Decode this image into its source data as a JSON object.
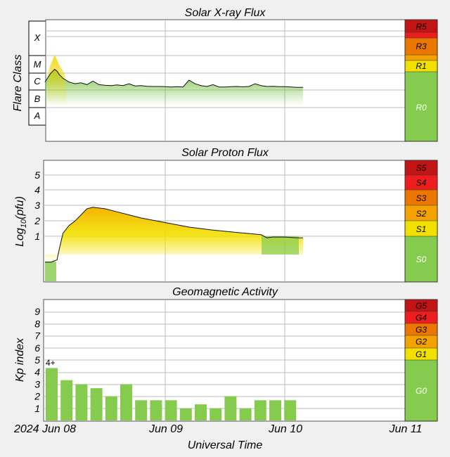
{
  "chart_data": [
    {
      "type": "area",
      "title": "Solar X-ray Flux",
      "ylabel": "Flare Class",
      "class_labels": [
        "X",
        "M",
        "C",
        "B",
        "A"
      ],
      "scale_bands": [
        "R5",
        "R3",
        "R1",
        "R0"
      ],
      "series": [
        {
          "x_days": [
            0,
            0.02,
            0.05,
            0.08,
            0.1,
            0.12,
            0.15,
            0.2,
            0.25,
            0.3,
            0.35,
            0.4,
            0.45,
            0.5,
            0.55,
            0.6,
            0.65,
            0.7,
            0.75,
            0.8,
            0.85,
            0.9,
            0.95,
            1.0,
            1.05,
            1.1,
            1.15,
            1.2,
            1.25,
            1.3,
            1.35,
            1.4,
            1.45,
            1.5,
            1.55,
            1.6,
            1.65,
            1.7,
            1.75,
            1.8,
            1.85,
            1.9,
            1.95,
            2.0,
            2.05,
            2.1,
            2.15
          ],
          "log_flux": [
            -5.6,
            -5.4,
            -5.1,
            -4.9,
            -5.0,
            -5.2,
            -5.4,
            -5.6,
            -5.7,
            -5.65,
            -5.75,
            -5.55,
            -5.75,
            -5.78,
            -5.8,
            -5.76,
            -5.8,
            -5.7,
            -5.82,
            -5.8,
            -5.84,
            -5.85,
            -5.85,
            -5.86,
            -5.88,
            -5.86,
            -5.88,
            -5.5,
            -5.7,
            -5.8,
            -5.85,
            -5.75,
            -5.88,
            -5.88,
            -5.86,
            -5.85,
            -5.87,
            -5.85,
            -5.7,
            -5.8,
            -5.85,
            -5.84,
            -5.86,
            -5.86,
            -5.88,
            -5.9,
            -5.9
          ]
        }
      ]
    },
    {
      "type": "area",
      "title": "Solar Proton Flux",
      "ylabel": "Log10(pfu)",
      "yticks": [
        "1",
        "2",
        "3",
        "4",
        "5"
      ],
      "scale_bands": [
        "S5",
        "S4",
        "S3",
        "S2",
        "S1",
        "S0"
      ],
      "series": [
        {
          "x_days": [
            0,
            0.05,
            0.1,
            0.12,
            0.15,
            0.2,
            0.25,
            0.3,
            0.35,
            0.4,
            0.45,
            0.5,
            0.6,
            0.7,
            0.8,
            0.9,
            1.0,
            1.2,
            1.4,
            1.6,
            1.8,
            1.85,
            1.9,
            2.0,
            2.1,
            2.15
          ],
          "log_pfu": [
            -0.7,
            -0.7,
            -0.55,
            0.2,
            1.2,
            1.7,
            2.0,
            2.4,
            2.8,
            2.9,
            2.85,
            2.8,
            2.6,
            2.4,
            2.2,
            2.05,
            1.9,
            1.6,
            1.4,
            1.25,
            1.1,
            0.9,
            0.95,
            0.95,
            0.9,
            0.9
          ]
        }
      ]
    },
    {
      "type": "bar",
      "title": "Geomagnetic Activity",
      "ylabel": "Kp index",
      "xlabel": "Universal Time",
      "yticks": [
        "1",
        "2",
        "3",
        "4",
        "5",
        "6",
        "7",
        "8",
        "9"
      ],
      "scale_bands": [
        "G5",
        "G4",
        "G3",
        "G2",
        "G1",
        "G0"
      ],
      "values": [
        4.33,
        3.33,
        3.0,
        2.67,
        2.0,
        3.0,
        1.67,
        1.67,
        1.67,
        1.0,
        1.33,
        1.0,
        2.0,
        1.0,
        1.67,
        1.67,
        1.67
      ],
      "annotation": "4+",
      "x_ticks": [
        "2024 Jun 08",
        "Jun 09",
        "Jun 10",
        "Jun 11"
      ]
    }
  ],
  "colors": {
    "green": "#84cb4e",
    "yellow": "#f2e100",
    "orange": "#f4a200",
    "dark_orange": "#ec7700",
    "red": "#ee1e1e",
    "dark_red": "#c21414"
  }
}
